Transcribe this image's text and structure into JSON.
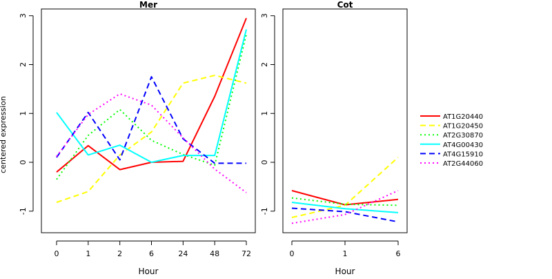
{
  "ylabel": "centered expression",
  "chart_data": [
    {
      "type": "line",
      "title": "Mer",
      "xlabel": "Hour",
      "ylabel": "centered expression",
      "categories": [
        "0",
        "1",
        "2",
        "6",
        "24",
        "48",
        "72"
      ],
      "ylim": [
        -1.45,
        3.15
      ],
      "yticks": [
        -1,
        0,
        1,
        2,
        3
      ],
      "grid": false,
      "series": [
        {
          "name": "AT1G20440",
          "color": "#ff0000",
          "dash": "solid",
          "values": [
            -0.2,
            0.34,
            -0.15,
            0.0,
            0.02,
            1.35,
            2.95
          ]
        },
        {
          "name": "AT1G20450",
          "color": "#ffff00",
          "dash": "dashed",
          "values": [
            -0.82,
            -0.6,
            0.15,
            0.62,
            1.62,
            1.78,
            1.62
          ]
        },
        {
          "name": "AT2G30870",
          "color": "#00ff00",
          "dash": "dotted",
          "values": [
            -0.35,
            0.55,
            1.08,
            0.45,
            0.16,
            -0.06,
            2.62
          ]
        },
        {
          "name": "AT4G00430",
          "color": "#00ffff",
          "dash": "solid",
          "values": [
            1.02,
            0.15,
            0.35,
            0.0,
            0.14,
            0.14,
            2.72
          ]
        },
        {
          "name": "AT4G15910",
          "color": "#0000ff",
          "dash": "dashed",
          "values": [
            0.1,
            1.02,
            0.05,
            1.75,
            0.48,
            -0.02,
            -0.02
          ]
        },
        {
          "name": "AT2G44060",
          "color": "#ff00ff",
          "dash": "dotted",
          "values": [
            0.12,
            0.98,
            1.4,
            1.17,
            0.5,
            -0.14,
            -0.62
          ]
        }
      ]
    },
    {
      "type": "line",
      "title": "Cot",
      "xlabel": "Hour",
      "ylabel": "",
      "categories": [
        "0",
        "1",
        "6"
      ],
      "ylim": [
        -1.45,
        3.15
      ],
      "yticks": [
        -1,
        0,
        1,
        2,
        3
      ],
      "grid": false,
      "series": [
        {
          "name": "AT1G20440",
          "color": "#ff0000",
          "dash": "solid",
          "values": [
            -0.58,
            -0.87,
            -0.76
          ]
        },
        {
          "name": "AT1G20450",
          "color": "#ffff00",
          "dash": "dashed",
          "values": [
            -1.13,
            -0.88,
            0.1
          ]
        },
        {
          "name": "AT2G30870",
          "color": "#00ff00",
          "dash": "dotted",
          "values": [
            -0.73,
            -0.86,
            -0.88
          ]
        },
        {
          "name": "AT4G00430",
          "color": "#00ffff",
          "dash": "solid",
          "values": [
            -0.82,
            -0.95,
            -1.03
          ]
        },
        {
          "name": "AT4G15910",
          "color": "#0000ff",
          "dash": "dashed",
          "values": [
            -0.94,
            -1.01,
            -1.22
          ]
        },
        {
          "name": "AT2G44060",
          "color": "#ff00ff",
          "dash": "dotted",
          "values": [
            -1.25,
            -1.07,
            -0.58
          ]
        }
      ]
    }
  ],
  "legend": {
    "placement": "right",
    "entries": [
      {
        "label": "AT1G20440",
        "color": "#ff0000",
        "dash": "solid"
      },
      {
        "label": "AT1G20450",
        "color": "#ffff00",
        "dash": "dashed"
      },
      {
        "label": "AT2G30870",
        "color": "#00ff00",
        "dash": "dotted"
      },
      {
        "label": "AT4G00430",
        "color": "#00ffff",
        "dash": "solid"
      },
      {
        "label": "AT4G15910",
        "color": "#0000ff",
        "dash": "dashed"
      },
      {
        "label": "AT2G44060",
        "color": "#ff00ff",
        "dash": "dotted"
      }
    ]
  }
}
